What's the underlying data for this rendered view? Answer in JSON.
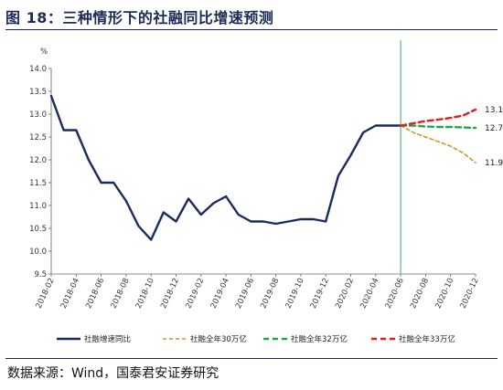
{
  "header": {
    "title": "图 18：三种情形下的社融同比增速预测"
  },
  "footer": {
    "source": "数据来源：Wind，国泰君安证券研究"
  },
  "colors": {
    "actual": "#1b2a60",
    "s30": "#c99a2e",
    "s32": "#1fa84a",
    "s33": "#e01d1d",
    "vline": "#55bb77"
  },
  "chart_data": {
    "type": "line",
    "title": "",
    "ylabel": "%",
    "xlabel": "",
    "ylim": [
      9.5,
      14.0
    ],
    "yticks": [
      "9.5",
      "10.0",
      "10.5",
      "11.0",
      "11.5",
      "12.0",
      "12.5",
      "13.0",
      "13.5",
      "14.0"
    ],
    "xticks": [
      "2018-02",
      "2018-04",
      "2018-06",
      "2018-08",
      "2018-10",
      "2018-12",
      "2019-02",
      "2019-04",
      "2019-06",
      "2019-08",
      "2019-10",
      "2019-12",
      "2020-02",
      "2020-04",
      "2020-06",
      "2020-08",
      "2020-10",
      "2020-12"
    ],
    "vertical_marker": "2020-06",
    "legend_position": "bottom",
    "series": [
      {
        "name": "社融增速同比",
        "style": "solid",
        "x": [
          "2018-02",
          "2018-03",
          "2018-04",
          "2018-05",
          "2018-06",
          "2018-07",
          "2018-08",
          "2018-09",
          "2018-10",
          "2018-11",
          "2018-12",
          "2019-01",
          "2019-02",
          "2019-03",
          "2019-04",
          "2019-05",
          "2019-06",
          "2019-07",
          "2019-08",
          "2019-09",
          "2019-10",
          "2019-11",
          "2019-12",
          "2020-01",
          "2020-02",
          "2020-03",
          "2020-04",
          "2020-05",
          "2020-06"
        ],
        "values": [
          13.4,
          12.65,
          12.65,
          12.0,
          11.5,
          11.5,
          11.1,
          10.55,
          10.25,
          10.85,
          10.65,
          11.15,
          10.8,
          11.05,
          11.2,
          10.8,
          10.65,
          10.65,
          10.6,
          10.65,
          10.7,
          10.7,
          10.65,
          11.65,
          12.1,
          12.6,
          12.75,
          12.75,
          12.75
        ]
      },
      {
        "name": "社融全年30万亿",
        "style": "dashed",
        "x": [
          "2020-06",
          "2020-07",
          "2020-08",
          "2020-09",
          "2020-10",
          "2020-11",
          "2020-12"
        ],
        "values": [
          12.75,
          12.6,
          12.5,
          12.4,
          12.3,
          12.15,
          11.94
        ]
      },
      {
        "name": "社融全年32万亿",
        "style": "dashed",
        "x": [
          "2020-06",
          "2020-07",
          "2020-08",
          "2020-09",
          "2020-10",
          "2020-11",
          "2020-12"
        ],
        "values": [
          12.75,
          12.75,
          12.73,
          12.72,
          12.72,
          12.71,
          12.7
        ]
      },
      {
        "name": "社融全年33万亿",
        "style": "dashed",
        "x": [
          "2020-06",
          "2020-07",
          "2020-08",
          "2020-09",
          "2020-10",
          "2020-11",
          "2020-12"
        ],
        "values": [
          12.75,
          12.8,
          12.85,
          12.88,
          12.92,
          12.97,
          13.1
        ]
      }
    ],
    "annotations": [
      {
        "text": "13.10",
        "series": 3
      },
      {
        "text": "12.70",
        "series": 2
      },
      {
        "text": "11.94",
        "series": 1
      }
    ]
  }
}
